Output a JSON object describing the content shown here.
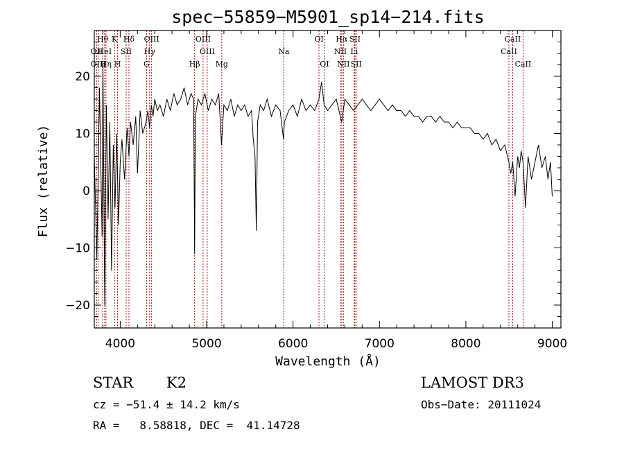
{
  "chart_data": {
    "type": "line",
    "title": "spec−55859−M5901_sp14−214.fits",
    "xlabel": "Wavelength (Å)",
    "ylabel": "Flux (relative)",
    "xlim": [
      3700,
      9100
    ],
    "ylim": [
      -24,
      28
    ],
    "xticks": [
      4000,
      5000,
      6000,
      7000,
      8000,
      9000
    ],
    "yticks": [
      -20,
      -10,
      0,
      10,
      20
    ],
    "series": [
      {
        "name": "flux",
        "x": [
          3700,
          3730,
          3760,
          3790,
          3800,
          3820,
          3840,
          3860,
          3880,
          3900,
          3920,
          3940,
          3960,
          3980,
          4000,
          4020,
          4050,
          4080,
          4101,
          4120,
          4150,
          4180,
          4200,
          4230,
          4260,
          4300,
          4320,
          4340,
          4360,
          4380,
          4400,
          4430,
          4460,
          4500,
          4540,
          4580,
          4620,
          4660,
          4700,
          4740,
          4780,
          4820,
          4850,
          4861,
          4870,
          4900,
          4940,
          4980,
          5020,
          5060,
          5100,
          5140,
          5172,
          5200,
          5240,
          5280,
          5320,
          5360,
          5400,
          5440,
          5480,
          5520,
          5540,
          5560,
          5575,
          5590,
          5620,
          5660,
          5700,
          5750,
          5800,
          5850,
          5890,
          5900,
          5950,
          6000,
          6050,
          6100,
          6150,
          6200,
          6250,
          6300,
          6330,
          6360,
          6400,
          6450,
          6500,
          6563,
          6600,
          6650,
          6700,
          6750,
          6800,
          6850,
          6900,
          6950,
          7000,
          7050,
          7100,
          7150,
          7200,
          7250,
          7300,
          7350,
          7400,
          7450,
          7500,
          7550,
          7600,
          7650,
          7700,
          7750,
          7800,
          7850,
          7900,
          7950,
          8000,
          8050,
          8100,
          8150,
          8200,
          8250,
          8300,
          8350,
          8400,
          8450,
          8498,
          8520,
          8542,
          8570,
          8600,
          8620,
          8640,
          8662,
          8690,
          8720,
          8760,
          8800,
          8840,
          8880,
          8920,
          8950,
          8980,
          9000
        ],
        "values": [
          6,
          -12,
          18,
          -8,
          22,
          -20,
          15,
          -5,
          12,
          -14,
          8,
          -3,
          10,
          -6,
          5,
          9,
          2,
          11,
          6,
          12,
          8,
          13,
          3,
          14,
          10,
          12,
          14,
          11,
          15,
          13,
          16,
          14,
          15,
          13,
          16,
          14,
          17,
          15,
          16,
          18,
          15,
          17,
          16,
          -11,
          13,
          16,
          15,
          17,
          14,
          16,
          15,
          17,
          8,
          15,
          14,
          16,
          13,
          15,
          14,
          15,
          13,
          14,
          9,
          6,
          -7,
          12,
          15,
          14,
          16,
          13,
          15,
          14,
          9,
          12,
          14,
          15,
          13,
          16,
          14,
          15,
          14,
          16,
          19,
          15,
          14,
          15,
          16,
          12,
          16,
          15,
          14,
          15,
          16,
          15,
          14,
          15,
          16,
          15,
          14,
          15,
          14,
          14,
          13,
          14,
          13,
          13,
          12,
          13,
          13,
          12,
          13,
          12,
          12,
          11,
          12,
          11,
          11,
          11,
          10,
          10,
          9,
          10,
          8,
          9,
          7,
          8,
          5,
          3,
          5,
          -1,
          6,
          4,
          7,
          5,
          -3,
          6,
          2,
          5,
          8,
          4,
          6,
          2,
          5,
          -1
        ]
      }
    ],
    "lines": [
      {
        "label": "Hθ",
        "wave": 3797,
        "row": 0
      },
      {
        "label": "OII",
        "wave": 3727,
        "row": 1
      },
      {
        "label": "OIII",
        "wave": 3745,
        "row": 2
      },
      {
        "label": "HeI",
        "wave": 3820,
        "row": 1
      },
      {
        "label": "Hη",
        "wave": 3835,
        "row": 2
      },
      {
        "label": "K",
        "wave": 3934,
        "row": 0
      },
      {
        "label": "SII",
        "wave": 4069,
        "row": 1
      },
      {
        "label": "H",
        "wave": 3969,
        "row": 2
      },
      {
        "label": "Hδ",
        "wave": 4101,
        "row": 0
      },
      {
        "label": "OIII",
        "wave": 4363,
        "row": 0
      },
      {
        "label": "Hγ",
        "wave": 4340,
        "row": 1
      },
      {
        "label": "G",
        "wave": 4305,
        "row": 2
      },
      {
        "label": "Hβ",
        "wave": 4861,
        "row": 2
      },
      {
        "label": "OIII",
        "wave": 4959,
        "row": 0
      },
      {
        "label": "OIII",
        "wave": 5007,
        "row": 1
      },
      {
        "label": "Mg",
        "wave": 5175,
        "row": 2
      },
      {
        "label": "Na",
        "wave": 5893,
        "row": 1
      },
      {
        "label": "OI",
        "wave": 6300,
        "row": 0
      },
      {
        "label": "OI",
        "wave": 6363,
        "row": 2
      },
      {
        "label": "Hα",
        "wave": 6563,
        "row": 0
      },
      {
        "label": "SII",
        "wave": 6716,
        "row": 0
      },
      {
        "label": "NII",
        "wave": 6548,
        "row": 1
      },
      {
        "label": "Li",
        "wave": 6708,
        "row": 1
      },
      {
        "label": "NII",
        "wave": 6583,
        "row": 2
      },
      {
        "label": "SII",
        "wave": 6731,
        "row": 2
      },
      {
        "label": "CaII",
        "wave": 8542,
        "row": 0
      },
      {
        "label": "CaII",
        "wave": 8498,
        "row": 1
      },
      {
        "label": "CaII",
        "wave": 8662,
        "row": 2
      }
    ],
    "colors": {
      "axes": "#000000",
      "line_marker": "#aa1111",
      "spectrum": "#000000"
    }
  },
  "info": {
    "class_type": "STAR",
    "subclass": "K2",
    "survey": "LAMOST DR3",
    "cz": "cz = −51.4 ± 14.2 km/s",
    "obs_date": "Obs−Date: 20111024",
    "radec": "RA =   8.58818, DEC =  41.14728"
  }
}
